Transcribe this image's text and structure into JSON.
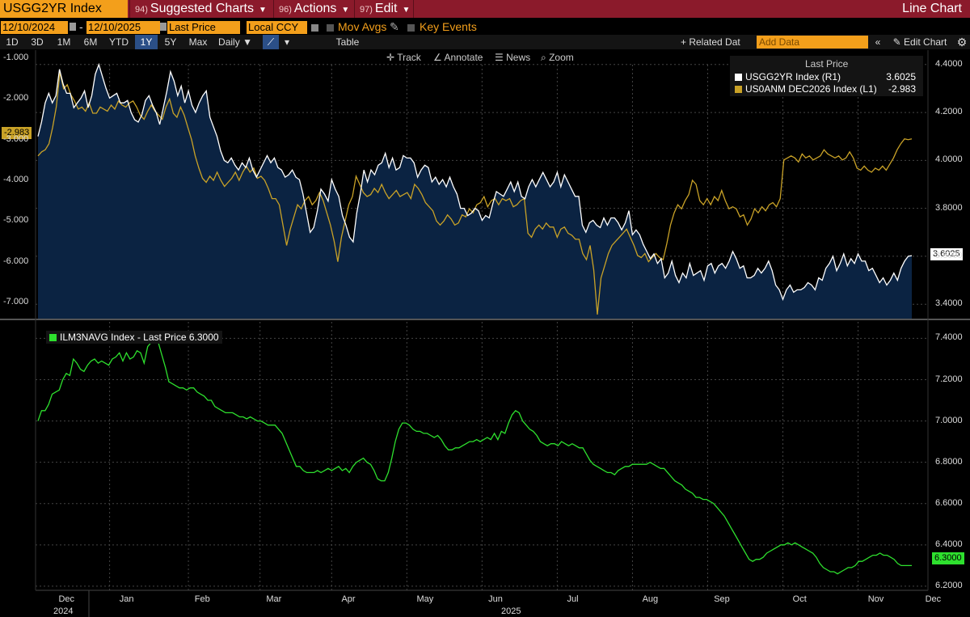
{
  "toolbar": {
    "ticker": "USGG2YR Index",
    "menus": [
      {
        "num": "94)",
        "label": "Suggested Charts"
      },
      {
        "num": "96)",
        "label": "Actions"
      },
      {
        "num": "97)",
        "label": "Edit"
      }
    ],
    "chart_type": "Line Chart",
    "start_date": "12/10/2024",
    "end_date": "12/10/2025",
    "date_sep": "-",
    "field": "Last Price",
    "currency": "Local CCY",
    "mov_avgs": "Mov Avgs",
    "key_events": "Key Events",
    "ranges": [
      "1D",
      "3D",
      "1M",
      "6M",
      "YTD",
      "1Y",
      "5Y",
      "Max"
    ],
    "active_range": "1Y",
    "frequency": "Daily",
    "table": "Table",
    "related": "+ Related Dat",
    "add_data_placeholder": "Add Data",
    "edit_chart": "Edit Chart",
    "annotations": [
      "Track",
      "Annotate",
      "News",
      "Zoom"
    ]
  },
  "colors": {
    "accent": "#f39f1b",
    "brand": "#8b1a2b",
    "white_series": "#ffffff",
    "gold_series": "#c9a227",
    "green_series": "#2ee02e",
    "fill": "#0b2342"
  },
  "chart_data": [
    {
      "type": "line",
      "title": "",
      "legend": {
        "header": "Last Price",
        "placement": "top-right",
        "entries": [
          {
            "name": "USGG2YR Index  (R1)",
            "value": "3.6025"
          },
          {
            "name": "US0ANM DEC2026 Index  (L1)",
            "value": "-2.983"
          }
        ]
      },
      "left_axis": {
        "range": [
          -7.4,
          -0.8
        ],
        "ticks": [
          "-1.000",
          "-2.000",
          "-3.000",
          "-4.000",
          "-5.000",
          "-6.000",
          "-7.000"
        ]
      },
      "right_axis": {
        "range": [
          3.34,
          4.46
        ],
        "ticks": [
          "4.4000",
          "4.2000",
          "4.0000",
          "3.8000",
          "3.6000",
          "3.4000"
        ]
      },
      "last_value_tags": {
        "left": "-2.983",
        "right": "3.6025"
      },
      "series": [
        {
          "name": "USGG2YR Index",
          "axis": "right",
          "values": [
            4.1,
            4.16,
            4.24,
            4.28,
            4.24,
            4.27,
            4.38,
            4.32,
            4.28,
            4.28,
            4.22,
            4.24,
            4.26,
            4.29,
            4.22,
            4.27,
            4.36,
            4.4,
            4.35,
            4.3,
            4.26,
            4.27,
            4.28,
            4.24,
            4.24,
            4.25,
            4.2,
            4.17,
            4.16,
            4.19,
            4.25,
            4.27,
            4.23,
            4.2,
            4.15,
            4.22,
            4.29,
            4.37,
            4.33,
            4.27,
            4.31,
            4.24,
            4.29,
            4.23,
            4.2,
            4.24,
            4.27,
            4.29,
            4.18,
            4.14,
            4.1,
            4.04,
            4.0,
            3.99,
            4.01,
            3.98,
            3.96,
            3.99,
            3.97,
            4.01,
            3.96,
            3.93,
            3.96,
            3.99,
            4.02,
            3.99,
            4.01,
            3.97,
            3.96,
            3.93,
            3.94,
            3.96,
            3.93,
            3.92,
            3.86,
            3.78,
            3.7,
            3.72,
            3.79,
            3.88,
            3.86,
            3.83,
            3.92,
            3.88,
            3.85,
            3.77,
            3.73,
            3.68,
            3.66,
            3.78,
            3.86,
            3.96,
            3.91,
            3.96,
            3.94,
            3.98,
            3.99,
            4.03,
            3.97,
            4.01,
            3.96,
            3.97,
            4.02,
            4.01,
            4.01,
            3.99,
            3.93,
            3.96,
            3.98,
            3.97,
            3.91,
            3.93,
            3.9,
            3.92,
            3.89,
            3.93,
            3.89,
            3.86,
            3.8,
            3.8,
            3.77,
            3.78,
            3.8,
            3.79,
            3.75,
            3.77,
            3.76,
            3.82,
            3.87,
            3.86,
            3.85,
            3.88,
            3.91,
            3.87,
            3.91,
            3.85,
            3.84,
            3.89,
            3.92,
            3.89,
            3.92,
            3.95,
            3.92,
            3.89,
            3.91,
            3.95,
            3.89,
            3.94,
            3.91,
            3.88,
            3.85,
            3.85,
            3.73,
            3.7,
            3.74,
            3.75,
            3.73,
            3.72,
            3.76,
            3.73,
            3.76,
            3.76,
            3.74,
            3.71,
            3.74,
            3.79,
            3.69,
            3.71,
            3.69,
            3.65,
            3.62,
            3.59,
            3.61,
            3.57,
            3.59,
            3.51,
            3.53,
            3.58,
            3.52,
            3.49,
            3.53,
            3.51,
            3.57,
            3.52,
            3.53,
            3.54,
            3.5,
            3.56,
            3.57,
            3.53,
            3.56,
            3.57,
            3.55,
            3.58,
            3.62,
            3.59,
            3.55,
            3.56,
            3.51,
            3.51,
            3.52,
            3.55,
            3.53,
            3.55,
            3.58,
            3.54,
            3.48,
            3.46,
            3.42,
            3.46,
            3.48,
            3.45,
            3.46,
            3.46,
            3.47,
            3.49,
            3.48,
            3.46,
            3.51,
            3.5,
            3.55,
            3.57,
            3.6,
            3.54,
            3.57,
            3.61,
            3.56,
            3.59,
            3.57,
            3.61,
            3.58,
            3.58,
            3.54,
            3.55,
            3.52,
            3.49,
            3.51,
            3.48,
            3.5,
            3.53,
            3.5,
            3.55,
            3.58,
            3.6,
            3.6025
          ]
        },
        {
          "name": "US0ANM DEC2026 Index",
          "axis": "left",
          "values": [
            -3.4,
            -3.3,
            -3.25,
            -3.1,
            -2.7,
            -2.2,
            -1.35,
            -1.75,
            -1.65,
            -1.9,
            -2.05,
            -2.25,
            -2.2,
            -2.3,
            -2.1,
            -2.35,
            -2.35,
            -2.2,
            -2.25,
            -2.3,
            -2.15,
            -2.25,
            -2.05,
            -2.15,
            -2.2,
            -2.1,
            -2.05,
            -2.2,
            -2.4,
            -2.5,
            -2.3,
            -2.15,
            -2.3,
            -2.4,
            -2.5,
            -2.2,
            -2.0,
            -2.35,
            -2.45,
            -2.2,
            -2.4,
            -2.7,
            -3.0,
            -3.4,
            -3.7,
            -3.95,
            -4.05,
            -3.9,
            -4.0,
            -3.8,
            -4.0,
            -4.15,
            -4.05,
            -3.95,
            -3.8,
            -4.0,
            -3.8,
            -3.65,
            -3.8,
            -3.7,
            -3.95,
            -3.9,
            -4.0,
            -4.2,
            -4.45,
            -4.45,
            -4.6,
            -5.1,
            -5.6,
            -5.2,
            -4.9,
            -4.6,
            -4.7,
            -4.5,
            -4.4,
            -4.6,
            -4.5,
            -4.3,
            -4.5,
            -4.8,
            -5.1,
            -5.5,
            -6.0,
            -5.4,
            -5.0,
            -4.6,
            -4.4,
            -3.9,
            -4.1,
            -4.3,
            -4.4,
            -4.35,
            -4.2,
            -4.3,
            -4.1,
            -4.3,
            -4.45,
            -4.35,
            -4.25,
            -4.4,
            -4.35,
            -4.3,
            -4.45,
            -4.1,
            -4.2,
            -4.35,
            -4.55,
            -4.65,
            -4.75,
            -5.0,
            -5.1,
            -5.0,
            -4.85,
            -4.95,
            -5.1,
            -5.05,
            -4.85,
            -4.9,
            -4.7,
            -4.8,
            -4.6,
            -4.55,
            -4.4,
            -4.65,
            -4.5,
            -4.45,
            -4.6,
            -4.45,
            -4.5,
            -4.45,
            -4.65,
            -4.6,
            -4.5,
            -4.45,
            -5.3,
            -5.4,
            -5.2,
            -5.1,
            -5.2,
            -5.05,
            -5.15,
            -5.15,
            -5.4,
            -5.2,
            -5.15,
            -5.3,
            -5.35,
            -5.45,
            -5.45,
            -5.8,
            -5.95,
            -5.6,
            -6.2,
            -7.3,
            -6.4,
            -6.1,
            -5.8,
            -5.6,
            -5.5,
            -5.4,
            -5.3,
            -5.2,
            -5.4,
            -5.6,
            -5.85,
            -5.9,
            -5.8,
            -6.0,
            -5.9,
            -5.8,
            -5.9,
            -5.95,
            -5.55,
            -5.1,
            -4.8,
            -4.6,
            -4.7,
            -4.5,
            -4.35,
            -4.0,
            -4.1,
            -4.5,
            -4.6,
            -4.45,
            -4.6,
            -4.4,
            -4.5,
            -4.25,
            -4.5,
            -4.7,
            -4.65,
            -4.7,
            -4.9,
            -4.85,
            -5.1,
            -4.95,
            -4.7,
            -4.8,
            -4.65,
            -4.75,
            -4.6,
            -4.55,
            -4.65,
            -4.45,
            -3.5,
            -3.45,
            -3.4,
            -3.45,
            -3.55,
            -3.35,
            -3.45,
            -3.4,
            -3.5,
            -3.45,
            -3.4,
            -3.25,
            -3.35,
            -3.4,
            -3.45,
            -3.4,
            -3.5,
            -3.45,
            -3.3,
            -3.45,
            -3.7,
            -3.75,
            -3.65,
            -3.75,
            -3.8,
            -3.7,
            -3.75,
            -3.65,
            -3.75,
            -3.6,
            -3.45,
            -3.25,
            -3.1,
            -2.98,
            -3.0,
            -2.983
          ]
        }
      ]
    },
    {
      "type": "line",
      "legend": {
        "entries": [
          {
            "name": "ILM3NAVG Index - Last Price 6.3000"
          }
        ]
      },
      "right_axis": {
        "range": [
          6.18,
          7.48
        ],
        "ticks": [
          "7.4000",
          "7.2000",
          "7.0000",
          "6.8000",
          "6.6000",
          "6.4000",
          "6.2000"
        ]
      },
      "last_value_tag": "6.3000",
      "x_axis": {
        "months": [
          "Dec",
          "Jan",
          "Feb",
          "Mar",
          "Apr",
          "May",
          "Jun",
          "Jul",
          "Aug",
          "Sep",
          "Oct",
          "Nov",
          "Dec"
        ],
        "years": [
          "2024",
          "2025"
        ]
      },
      "series": [
        {
          "name": "ILM3NAVG Index",
          "values": [
            7.0,
            7.05,
            7.05,
            7.08,
            7.13,
            7.14,
            7.15,
            7.2,
            7.23,
            7.22,
            7.3,
            7.28,
            7.25,
            7.24,
            7.27,
            7.29,
            7.3,
            7.28,
            7.29,
            7.28,
            7.27,
            7.3,
            7.31,
            7.33,
            7.29,
            7.33,
            7.3,
            7.31,
            7.34,
            7.33,
            7.28,
            7.36,
            7.38,
            7.42,
            7.38,
            7.32,
            7.26,
            7.19,
            7.18,
            7.17,
            7.16,
            7.16,
            7.15,
            7.16,
            7.16,
            7.14,
            7.13,
            7.12,
            7.1,
            7.1,
            7.07,
            7.06,
            7.05,
            7.04,
            7.04,
            7.04,
            7.03,
            7.02,
            7.02,
            7.01,
            7.02,
            7.01,
            7.0,
            7.0,
            6.99,
            6.98,
            6.98,
            6.98,
            6.96,
            6.94,
            6.9,
            6.86,
            6.82,
            6.78,
            6.78,
            6.76,
            6.75,
            6.75,
            6.75,
            6.76,
            6.75,
            6.76,
            6.77,
            6.76,
            6.77,
            6.78,
            6.76,
            6.77,
            6.75,
            6.78,
            6.8,
            6.81,
            6.82,
            6.8,
            6.79,
            6.76,
            6.72,
            6.71,
            6.71,
            6.75,
            6.82,
            6.9,
            6.96,
            6.99,
            6.99,
            6.98,
            6.96,
            6.95,
            6.95,
            6.94,
            6.94,
            6.93,
            6.92,
            6.93,
            6.91,
            6.88,
            6.86,
            6.86,
            6.87,
            6.87,
            6.88,
            6.89,
            6.9,
            6.9,
            6.91,
            6.9,
            6.91,
            6.92,
            6.91,
            6.94,
            6.91,
            6.95,
            6.94,
            6.99,
            7.03,
            7.05,
            7.04,
            7.0,
            6.98,
            6.96,
            6.95,
            6.93,
            6.9,
            6.89,
            6.88,
            6.89,
            6.89,
            6.88,
            6.9,
            6.89,
            6.88,
            6.89,
            6.88,
            6.87,
            6.87,
            6.84,
            6.81,
            6.79,
            6.78,
            6.77,
            6.76,
            6.75,
            6.75,
            6.74,
            6.76,
            6.77,
            6.78,
            6.78,
            6.79,
            6.79,
            6.79,
            6.79,
            6.79,
            6.8,
            6.79,
            6.78,
            6.77,
            6.77,
            6.75,
            6.73,
            6.71,
            6.7,
            6.69,
            6.67,
            6.66,
            6.65,
            6.63,
            6.63,
            6.62,
            6.62,
            6.61,
            6.6,
            6.58,
            6.56,
            6.54,
            6.51,
            6.48,
            6.45,
            6.42,
            6.39,
            6.36,
            6.33,
            6.32,
            6.33,
            6.33,
            6.34,
            6.36,
            6.37,
            6.38,
            6.39,
            6.4,
            6.4,
            6.41,
            6.4,
            6.41,
            6.4,
            6.39,
            6.38,
            6.37,
            6.36,
            6.34,
            6.31,
            6.29,
            6.28,
            6.27,
            6.27,
            6.26,
            6.27,
            6.28,
            6.29,
            6.29,
            6.3,
            6.32,
            6.32,
            6.33,
            6.34,
            6.35,
            6.35,
            6.36,
            6.35,
            6.35,
            6.34,
            6.33,
            6.31,
            6.3,
            6.3,
            6.3,
            6.3
          ]
        }
      ]
    }
  ]
}
